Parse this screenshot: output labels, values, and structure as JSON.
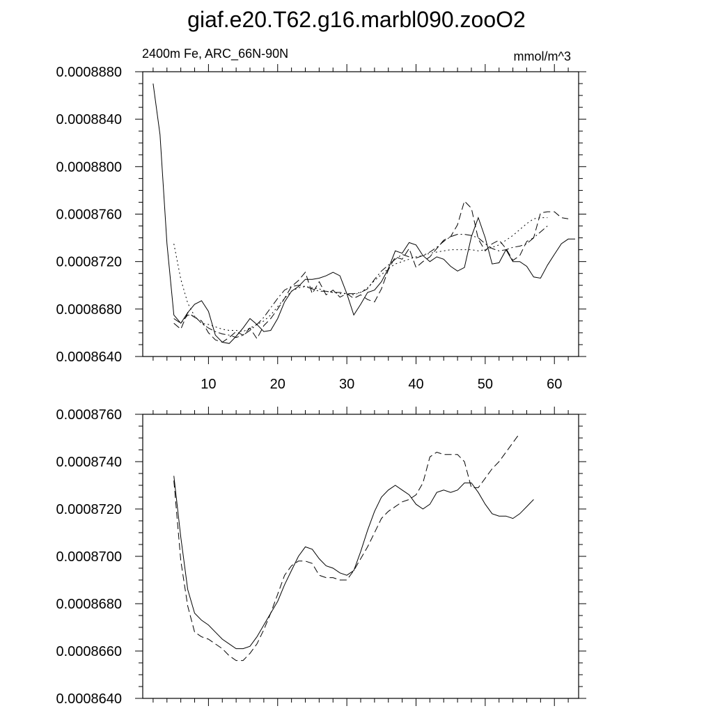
{
  "title": "giaf.e20.T62.g16.marbl090.zooO2",
  "chart_data": [
    {
      "type": "line",
      "left_label": "2400m Fe, ARC_66N-90N",
      "right_label": "mmol/m^3",
      "xlim": [
        0.5,
        63.5
      ],
      "ylim": [
        0.000864,
        0.000888
      ],
      "xticks": [
        10,
        20,
        30,
        40,
        50,
        60
      ],
      "xtick_labels": [
        "10",
        "20",
        "30",
        "40",
        "50",
        "60"
      ],
      "yticks": [
        0.000864,
        0.000868,
        0.000872,
        0.000876,
        0.00088,
        0.000884,
        0.000888
      ],
      "ytick_labels": [
        "0.0008640",
        "0.0008680",
        "0.0008720",
        "0.0008760",
        "0.0008800",
        "0.0008840",
        "0.0008880"
      ],
      "series": [
        {
          "style": "solid",
          "x_start": 2,
          "values": [
            0.000887,
            0.0008827,
            0.0008735,
            0.0008675,
            0.0008668,
            0.0008677,
            0.0008684,
            0.0008687,
            0.0008678,
            0.0008658,
            0.0008652,
            0.0008651,
            0.0008657,
            0.0008664,
            0.0008672,
            0.0008667,
            0.0008661,
            0.0008662,
            0.0008672,
            0.0008686,
            0.0008695,
            0.0008699,
            0.0008705,
            0.0008705,
            0.0008706,
            0.0008708,
            0.0008711,
            0.0008708,
            0.0008693,
            0.0008675,
            0.0008684,
            0.0008694,
            0.0008696,
            0.0008703,
            0.0008714,
            0.0008729,
            0.0008727,
            0.0008736,
            0.0008734,
            0.0008725,
            0.000872,
            0.0008724,
            0.0008722,
            0.0008716,
            0.0008712,
            0.0008715,
            0.0008741,
            0.0008757,
            0.000874,
            0.0008718,
            0.0008719,
            0.000873,
            0.000872,
            0.000872,
            0.0008716,
            0.0008707,
            0.0008706,
            0.0008717,
            0.0008726,
            0.0008735,
            0.0008739,
            0.0008739
          ]
        },
        {
          "style": "dashed",
          "x_start": 5,
          "values": [
            0.0008668,
            0.0008663,
            0.0008677,
            0.0008673,
            0.000867,
            0.000866,
            0.0008654,
            0.0008652,
            0.0008656,
            0.0008661,
            0.0008658,
            0.0008664,
            0.0008655,
            0.0008666,
            0.0008672,
            0.000868,
            0.0008689,
            0.0008699,
            0.0008704,
            0.0008711,
            0.0008693,
            0.0008703,
            0.0008692,
            0.0008696,
            0.000869,
            0.0008693,
            0.0008689,
            0.0008692,
            0.0008688,
            0.0008686,
            0.0008697,
            0.0008713,
            0.0008724,
            0.0008722,
            0.0008731,
            0.0008715,
            0.000872,
            0.0008724,
            0.0008731,
            0.0008738,
            0.0008741,
            0.0008751,
            0.0008771,
            0.0008765,
            0.0008739,
            0.0008729,
            0.0008735,
            0.0008738,
            0.0008731,
            0.0008721,
            0.0008725,
            0.0008737,
            0.000874,
            0.0008761,
            0.0008762,
            0.0008762,
            0.0008757,
            0.0008756
          ]
        },
        {
          "style": "dotted",
          "x_start": 5,
          "values": [
            0.0008735,
            0.0008705,
            0.0008685,
            0.0008674,
            0.0008668,
            0.0008667,
            0.0008665,
            0.0008663,
            0.0008662,
            0.0008662,
            0.0008661,
            0.0008664,
            0.0008667,
            0.000867,
            0.0008675,
            0.0008682,
            0.0008689,
            0.0008695,
            0.0008698,
            0.0008699,
            0.0008698,
            0.0008697,
            0.0008695,
            0.0008694,
            0.0008693,
            0.0008693,
            0.0008692,
            0.0008694,
            0.0008698,
            0.0008704,
            0.0008709,
            0.0008714,
            0.0008718,
            0.000872,
            0.0008722,
            0.0008724,
            0.0008725,
            0.0008727,
            0.0008728,
            0.0008729,
            0.000873,
            0.000873,
            0.000873,
            0.000873,
            0.0008729,
            0.000873,
            0.0008732,
            0.0008734,
            0.0008738,
            0.0008742,
            0.0008747,
            0.0008752,
            0.0008756,
            0.0008757,
            0.0008757
          ]
        },
        {
          "style": "dashdot",
          "x_start": 5,
          "values": [
            0.0008672,
            0.0008668,
            0.0008675,
            0.0008674,
            0.0008668,
            0.0008664,
            0.0008661,
            0.0008659,
            0.0008658,
            0.0008656,
            0.0008658,
            0.0008662,
            0.0008667,
            0.0008673,
            0.0008681,
            0.0008689,
            0.0008696,
            0.0008699,
            0.00087,
            0.0008699,
            0.0008697,
            0.0008695,
            0.0008695,
            0.0008694,
            0.0008694,
            0.0008693,
            0.0008693,
            0.0008694,
            0.0008697,
            0.0008705,
            0.0008712,
            0.0008717,
            0.0008722,
            0.0008726,
            0.0008724,
            0.0008723,
            0.0008725,
            0.0008728,
            0.0008732,
            0.0008737,
            0.0008741,
            0.0008743,
            0.0008743,
            0.0008742,
            0.000874,
            0.0008735,
            0.0008731,
            0.0008729,
            0.000873,
            0.0008732,
            0.0008733,
            0.0008735,
            0.000874,
            0.0008745,
            0.000875
          ]
        }
      ]
    },
    {
      "type": "line",
      "xlim": [
        0.5,
        63.5
      ],
      "ylim": [
        0.000864,
        0.000876
      ],
      "xticks": [
        10,
        20,
        30,
        40,
        50,
        60
      ],
      "yticks": [
        0.000864,
        0.000866,
        0.000868,
        0.00087,
        0.000872,
        0.000874,
        0.000876
      ],
      "ytick_labels": [
        "0.0008640",
        "0.0008660",
        "0.0008680",
        "0.0008700",
        "0.0008720",
        "0.0008740",
        "0.0008760"
      ],
      "series": [
        {
          "style": "solid",
          "x_start": 5,
          "values": [
            0.0008734,
            0.0008708,
            0.0008686,
            0.0008676,
            0.0008673,
            0.0008671,
            0.0008668,
            0.0008665,
            0.0008663,
            0.0008661,
            0.0008661,
            0.0008662,
            0.0008666,
            0.0008671,
            0.0008676,
            0.0008681,
            0.0008688,
            0.0008694,
            0.00087,
            0.0008704,
            0.0008703,
            0.0008699,
            0.0008696,
            0.0008695,
            0.0008693,
            0.0008692,
            0.0008694,
            0.0008702,
            0.0008711,
            0.0008719,
            0.0008725,
            0.0008728,
            0.000873,
            0.0008728,
            0.0008726,
            0.0008722,
            0.000872,
            0.0008722,
            0.0008727,
            0.0008728,
            0.0008727,
            0.0008728,
            0.0008731,
            0.0008731,
            0.0008727,
            0.0008722,
            0.0008718,
            0.0008717,
            0.0008717,
            0.0008716,
            0.0008718,
            0.0008721,
            0.0008724
          ]
        },
        {
          "style": "dashed",
          "x_start": 5,
          "values": [
            0.0008732,
            0.0008698,
            0.0008679,
            0.0008668,
            0.0008666,
            0.0008665,
            0.0008663,
            0.0008661,
            0.0008658,
            0.0008656,
            0.0008656,
            0.0008659,
            0.0008663,
            0.0008669,
            0.0008676,
            0.0008684,
            0.0008692,
            0.0008696,
            0.0008698,
            0.0008698,
            0.0008697,
            0.0008692,
            0.0008691,
            0.0008691,
            0.000869,
            0.000869,
            0.0008694,
            0.0008699,
            0.0008704,
            0.000871,
            0.0008716,
            0.0008719,
            0.0008721,
            0.0008723,
            0.0008724,
            0.0008726,
            0.0008731,
            0.0008742,
            0.0008744,
            0.0008743,
            0.0008743,
            0.0008743,
            0.000874,
            0.0008729,
            0.0008729,
            0.0008733,
            0.0008737,
            0.000874,
            0.0008744,
            0.0008748,
            0.0008752
          ]
        }
      ]
    }
  ]
}
